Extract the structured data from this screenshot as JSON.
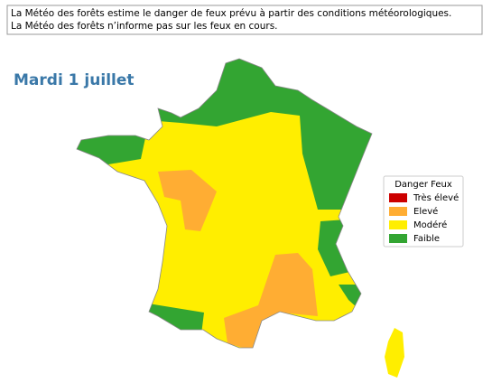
{
  "notice": {
    "lines": [
      "La Météo des forêts estime le danger de feux prévu à partir des conditions météorologiques.",
      "La Météo des forêts n’informe pas sur les feux en cours."
    ]
  },
  "title": "Mardi 1 juillet",
  "legend": {
    "title": "Danger Feux",
    "items": [
      {
        "label": "Très élevé",
        "color": "#cc0000"
      },
      {
        "label": "Elevé",
        "color": "#ffad33"
      },
      {
        "label": "Modéré",
        "color": "#ffee00"
      },
      {
        "label": "Faible",
        "color": "#33a532"
      }
    ]
  }
}
